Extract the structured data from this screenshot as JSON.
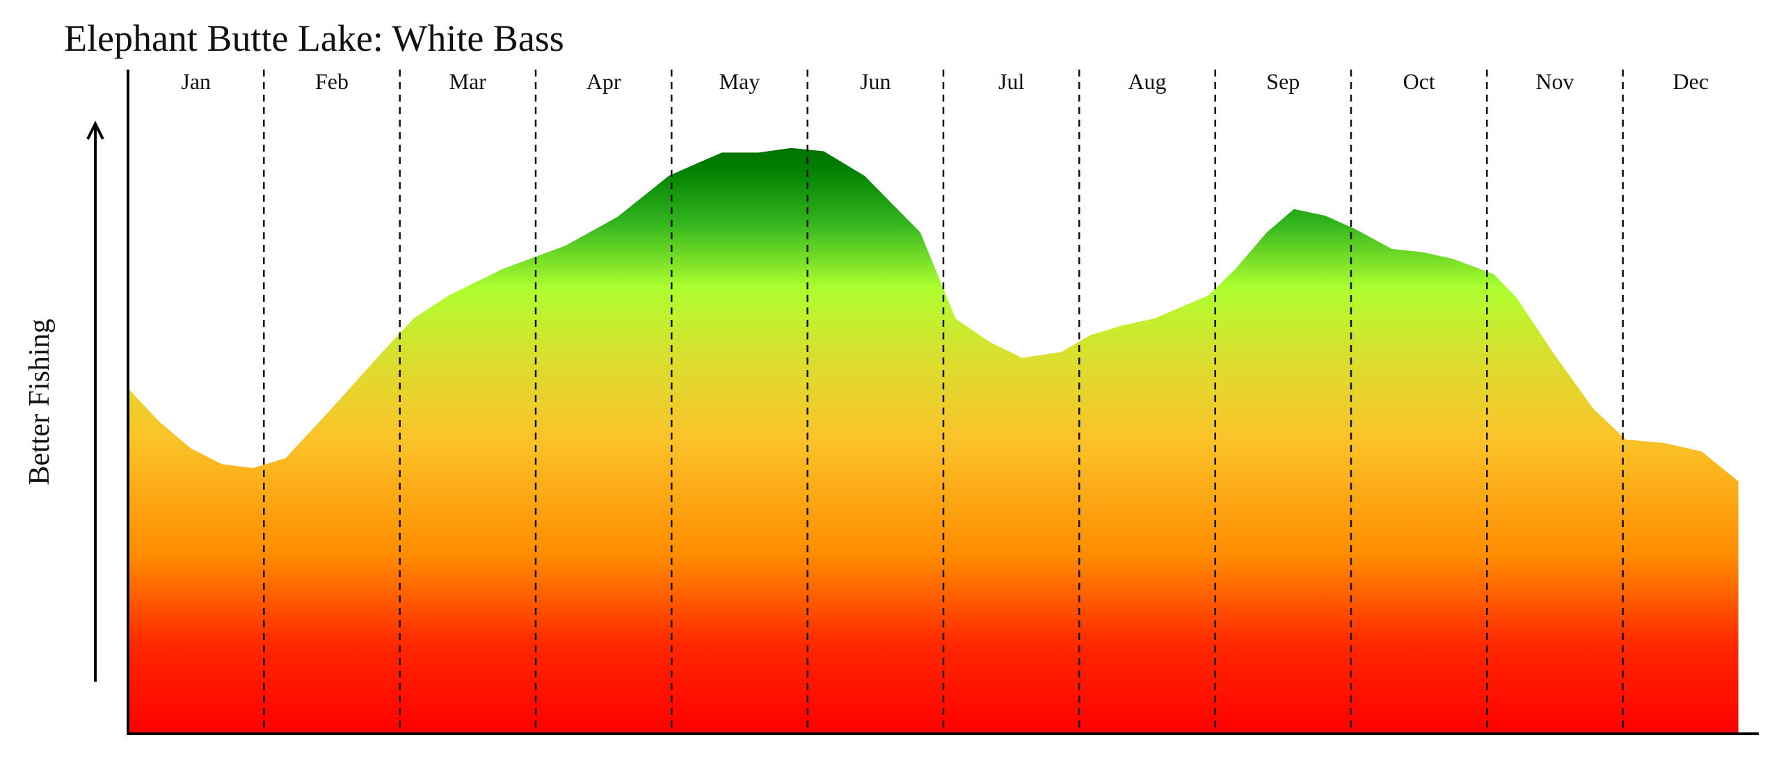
{
  "chart_data": {
    "type": "area",
    "title": "Elephant Butte Lake: White Bass",
    "ylabel": "Better Fishing",
    "xlabel": "",
    "categories": [
      "Jan",
      "Feb",
      "Mar",
      "Apr",
      "May",
      "Jun",
      "Jul",
      "Aug",
      "Sep",
      "Oct",
      "Nov",
      "Dec"
    ],
    "x_range": [
      0,
      12
    ],
    "ylim": [
      0,
      100
    ],
    "grid": "dashed month separators",
    "legend": "none",
    "colors": {
      "low": "#ff0000",
      "mid_low": "#ff8c00",
      "mid": "#f9c22a",
      "mid_high": "#adff2f",
      "high": "#008000",
      "axis": "#000000"
    },
    "series": [
      {
        "x": [
          0,
          0.23,
          0.46,
          0.69,
          0.92,
          1.16,
          1.5,
          1.85,
          2.1,
          2.36,
          2.76,
          3.22,
          3.6,
          3.98,
          4.2,
          4.37,
          4.64,
          4.88,
          5.12,
          5.42,
          5.83,
          6.09,
          6.34,
          6.58,
          6.87,
          7.08,
          7.32,
          7.55,
          7.95,
          8.15,
          8.38,
          8.58,
          8.81,
          9.03,
          9.3,
          9.53,
          9.75,
          10.05,
          10.22,
          10.5,
          10.78,
          11.02,
          11.3,
          11.58,
          11.85
        ],
        "values": [
          52,
          47,
          43,
          40.6,
          40,
          41.5,
          49,
          57,
          62.5,
          66,
          70,
          73.5,
          77.8,
          84,
          86,
          87.5,
          87.5,
          88.2,
          87.7,
          84,
          75.5,
          62.5,
          59,
          56.6,
          57.5,
          60,
          61.5,
          62.5,
          66,
          70,
          75.5,
          79,
          78,
          76,
          73,
          72.5,
          71.5,
          69.2,
          65.6,
          57,
          49,
          44.3,
          43.8,
          42.5,
          38
        ]
      }
    ]
  }
}
